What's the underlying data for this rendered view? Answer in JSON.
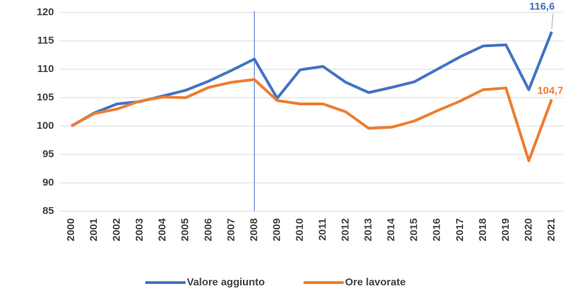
{
  "chart_data": {
    "type": "line",
    "categories": [
      "2000",
      "2001",
      "2002",
      "2003",
      "2004",
      "2005",
      "2006",
      "2007",
      "2008",
      "2009",
      "2010",
      "2011",
      "2012",
      "2013",
      "2014",
      "2015",
      "2016",
      "2017",
      "2018",
      "2019",
      "2020",
      "2021"
    ],
    "series": [
      {
        "name": "Valore aggiunto",
        "color": "#4472c4",
        "values": [
          100,
          102.3,
          103.9,
          104.3,
          105.3,
          106.3,
          107.9,
          109.8,
          111.8,
          104.9,
          109.9,
          110.5,
          107.7,
          105.9,
          106.8,
          107.8,
          110.0,
          112.2,
          114.1,
          114.3,
          106.4,
          116.6
        ],
        "value_labels": [
          null,
          null,
          null,
          null,
          null,
          null,
          null,
          null,
          null,
          null,
          null,
          null,
          null,
          null,
          null,
          null,
          null,
          null,
          null,
          null,
          null,
          "116,6"
        ]
      },
      {
        "name": "Ore lavorate",
        "color": "#ed7d31",
        "values": [
          100,
          102.2,
          103.0,
          104.4,
          105.1,
          105.0,
          106.8,
          107.7,
          108.2,
          104.5,
          103.9,
          103.9,
          102.5,
          99.6,
          99.8,
          100.9,
          102.7,
          104.4,
          106.4,
          106.7,
          93.9,
          104.7
        ],
        "value_labels": [
          null,
          null,
          null,
          null,
          null,
          null,
          null,
          null,
          null,
          null,
          null,
          null,
          null,
          null,
          null,
          null,
          null,
          null,
          null,
          null,
          null,
          "104,7"
        ]
      }
    ],
    "ylim": [
      85,
      120
    ],
    "yticks": [
      85,
      90,
      95,
      100,
      105,
      110,
      115,
      120
    ],
    "grid": true,
    "vertical_line_at": "2008",
    "vertical_line_color": "#4472c4",
    "legend": "bottom"
  }
}
